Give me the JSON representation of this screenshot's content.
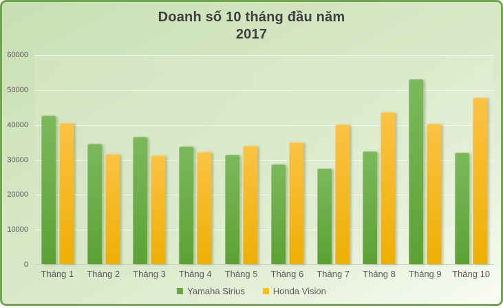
{
  "title": {
    "line1": "Doanh số 10 tháng đầu năm",
    "line2": "2017"
  },
  "chart_data": {
    "type": "bar",
    "title": "Doanh số 10 tháng đầu năm 2017",
    "categories": [
      "Tháng 1",
      "Tháng 2",
      "Tháng 3",
      "Tháng 4",
      "Tháng 5",
      "Tháng 6",
      "Tháng 7",
      "Tháng 8",
      "Tháng 9",
      "Tháng 10"
    ],
    "series": [
      {
        "name": "Yamaha Sirius",
        "values": [
          42700,
          34500,
          36600,
          33700,
          31300,
          28600,
          27500,
          32400,
          53000,
          32000
        ],
        "color_top": "#7cb95b",
        "color_bottom": "#5ca233",
        "legend_color": "#69a83e"
      },
      {
        "name": "Honda Vision",
        "values": [
          40400,
          31600,
          31200,
          32200,
          33900,
          35000,
          40000,
          43600,
          40200,
          47700
        ],
        "color_top": "#fcc242",
        "color_bottom": "#eeaf02",
        "legend_color": "#fcbf06"
      }
    ],
    "ylim": [
      0,
      60000
    ],
    "yticks": [
      0,
      10000,
      20000,
      30000,
      40000,
      50000,
      60000
    ],
    "grid": true,
    "legend_position": "bottom"
  },
  "colors": {
    "frame_border": "#71a751",
    "background_top": "#c9dfb2",
    "background_bottom": "#f8fbf3",
    "title_text": "#3f3f3f",
    "axis_text": "#595959",
    "gridline": "rgba(255,255,255,0.65)"
  }
}
